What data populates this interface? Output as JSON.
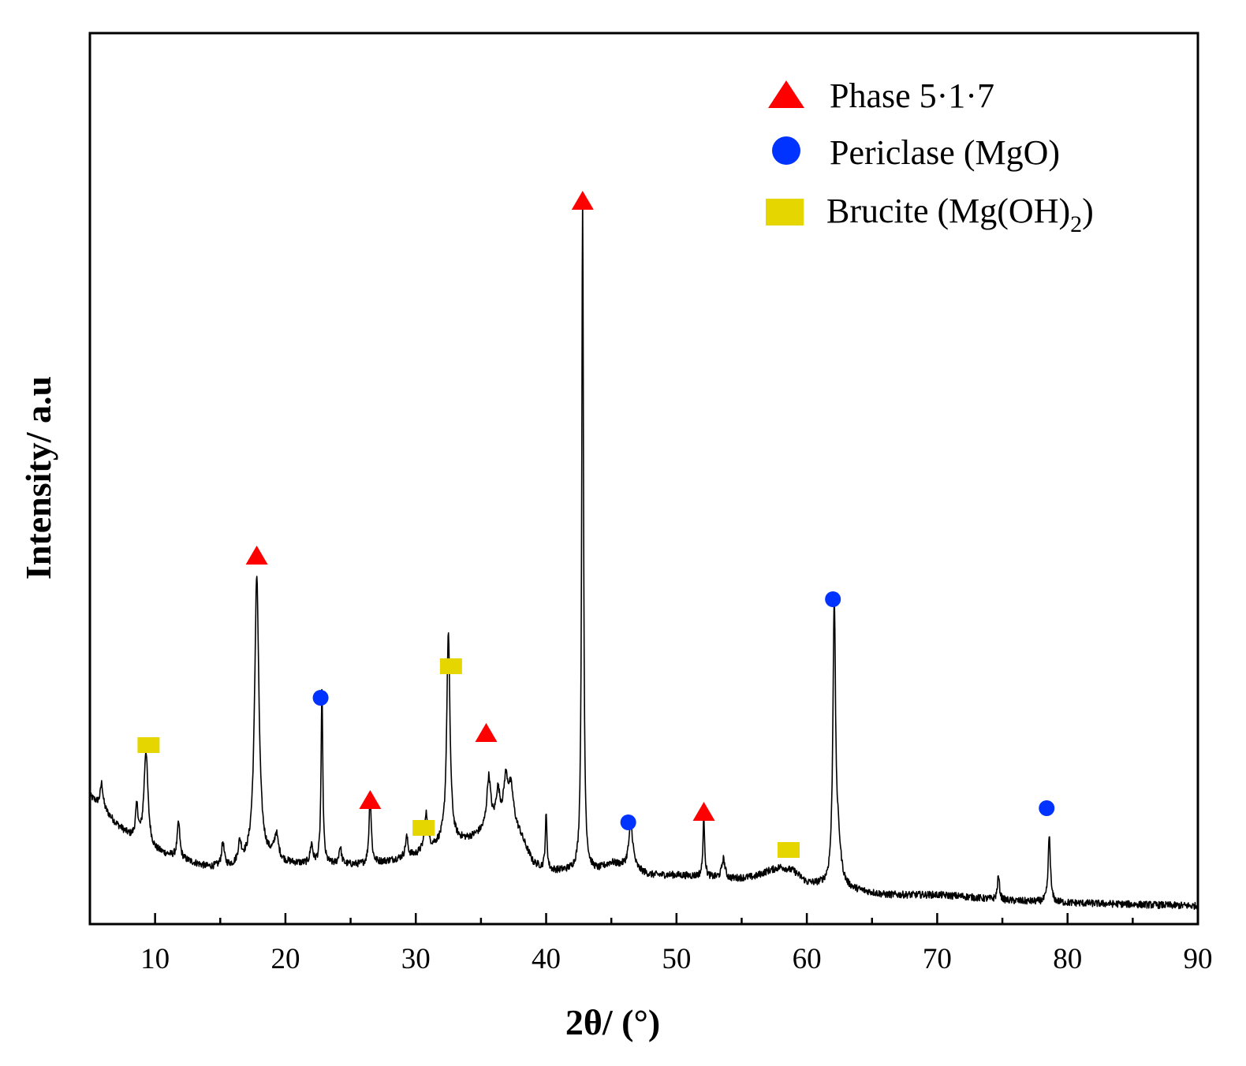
{
  "chart_data": {
    "type": "line",
    "title": "",
    "xlabel": "2θ/ (°)",
    "ylabel": "Intensity/ a.u",
    "xlim": [
      5,
      90
    ],
    "ylim": [
      0,
      100
    ],
    "xticks": [
      10,
      20,
      30,
      40,
      50,
      60,
      70,
      80,
      90
    ],
    "yticks": [],
    "grid": false,
    "legend_position": "top-right",
    "colors": {
      "line": "#000000",
      "phase517": "#ff0000",
      "periclase": "#0033ff",
      "brucite": "#e6d600"
    },
    "legend": [
      {
        "key": "phase517",
        "shape": "triangle",
        "label": "Phase 5·1·7"
      },
      {
        "key": "periclase",
        "shape": "circle",
        "label": "Periclase (MgO)"
      },
      {
        "key": "brucite",
        "shape": "square",
        "label": "Brucite (Mg(OH)",
        "subscript": "2",
        "suffix": ")"
      }
    ],
    "baseline": [
      [
        5,
        15
      ],
      [
        6,
        13.5
      ],
      [
        7,
        11.5
      ],
      [
        8,
        10
      ],
      [
        9,
        9
      ],
      [
        10,
        8
      ],
      [
        11,
        7.5
      ],
      [
        12,
        7
      ],
      [
        13,
        6.5
      ],
      [
        14,
        6
      ],
      [
        15,
        6
      ],
      [
        16,
        6
      ],
      [
        17,
        6.5
      ],
      [
        18,
        7
      ],
      [
        19,
        7
      ],
      [
        20,
        6.5
      ],
      [
        22,
        6.3
      ],
      [
        24,
        6.3
      ],
      [
        26,
        6.3
      ],
      [
        28,
        6.8
      ],
      [
        30,
        7.5
      ],
      [
        32,
        9
      ],
      [
        34,
        9.5
      ],
      [
        36,
        11
      ],
      [
        37,
        12
      ],
      [
        38,
        10
      ],
      [
        39,
        6.5
      ],
      [
        40,
        5.5
      ],
      [
        42,
        5.5
      ],
      [
        44,
        5.6
      ],
      [
        45,
        6.5
      ],
      [
        46,
        6
      ],
      [
        48,
        5
      ],
      [
        50,
        5
      ],
      [
        52,
        4.8
      ],
      [
        54,
        4.5
      ],
      [
        56,
        4.8
      ],
      [
        57,
        5.5
      ],
      [
        58,
        6
      ],
      [
        59,
        5.5
      ],
      [
        60,
        4
      ],
      [
        62,
        3.5
      ],
      [
        64,
        3
      ],
      [
        66,
        2.5
      ],
      [
        70,
        2.5
      ],
      [
        72,
        2.3
      ],
      [
        75,
        1.8
      ],
      [
        80,
        1.5
      ],
      [
        85,
        1.3
      ],
      [
        90,
        1.1
      ]
    ],
    "peaks": [
      {
        "x": 5.9,
        "h": 3,
        "w": 0.12
      },
      {
        "x": 8.6,
        "h": 4,
        "w": 0.12
      },
      {
        "x": 9.3,
        "h": 12,
        "w": 0.18
      },
      {
        "x": 11.8,
        "h": 4.5,
        "w": 0.12
      },
      {
        "x": 15.2,
        "h": 3,
        "w": 0.12
      },
      {
        "x": 16.5,
        "h": 2.5,
        "w": 0.15
      },
      {
        "x": 17.8,
        "h": 36,
        "w": 0.2
      },
      {
        "x": 19.3,
        "h": 3,
        "w": 0.18
      },
      {
        "x": 22.0,
        "h": 2.5,
        "w": 0.12
      },
      {
        "x": 22.8,
        "h": 22,
        "w": 0.08
      },
      {
        "x": 24.2,
        "h": 2.2,
        "w": 0.12
      },
      {
        "x": 26.5,
        "h": 9,
        "w": 0.1
      },
      {
        "x": 29.3,
        "h": 2.5,
        "w": 0.12
      },
      {
        "x": 30.8,
        "h": 4.5,
        "w": 0.15
      },
      {
        "x": 32.5,
        "h": 26.5,
        "w": 0.15
      },
      {
        "x": 35.6,
        "h": 6.5,
        "w": 0.18
      },
      {
        "x": 36.3,
        "h": 4,
        "w": 0.18
      },
      {
        "x": 36.9,
        "h": 4.5,
        "w": 0.18
      },
      {
        "x": 37.3,
        "h": 4.5,
        "w": 0.25
      },
      {
        "x": 40.0,
        "h": 7,
        "w": 0.08
      },
      {
        "x": 42.8,
        "h": 86,
        "w": 0.08
      },
      {
        "x": 46.5,
        "h": 5.5,
        "w": 0.2
      },
      {
        "x": 52.1,
        "h": 7.5,
        "w": 0.08
      },
      {
        "x": 53.6,
        "h": 2.5,
        "w": 0.15
      },
      {
        "x": 62.1,
        "h": 35,
        "w": 0.12
      },
      {
        "x": 62.4,
        "h": 5,
        "w": 0.25
      },
      {
        "x": 74.7,
        "h": 3,
        "w": 0.1
      },
      {
        "x": 78.6,
        "h": 8.5,
        "w": 0.1
      }
    ],
    "markers": [
      {
        "phase": "brucite",
        "x": 9.5,
        "y": 21.5
      },
      {
        "phase": "phase517",
        "x": 17.8,
        "y": 45.5
      },
      {
        "phase": "periclase",
        "x": 22.7,
        "y": 27.5
      },
      {
        "phase": "phase517",
        "x": 26.5,
        "y": 14.5
      },
      {
        "phase": "brucite",
        "x": 30.6,
        "y": 11
      },
      {
        "phase": "brucite",
        "x": 32.7,
        "y": 31.5
      },
      {
        "phase": "phase517",
        "x": 35.4,
        "y": 23
      },
      {
        "phase": "phase517",
        "x": 42.8,
        "y": 90.5
      },
      {
        "phase": "periclase",
        "x": 46.3,
        "y": 11.7
      },
      {
        "phase": "phase517",
        "x": 52.1,
        "y": 13
      },
      {
        "phase": "brucite",
        "x": 58.6,
        "y": 8.2
      },
      {
        "phase": "periclase",
        "x": 62.0,
        "y": 40
      },
      {
        "phase": "periclase",
        "x": 78.4,
        "y": 13.5
      }
    ]
  }
}
